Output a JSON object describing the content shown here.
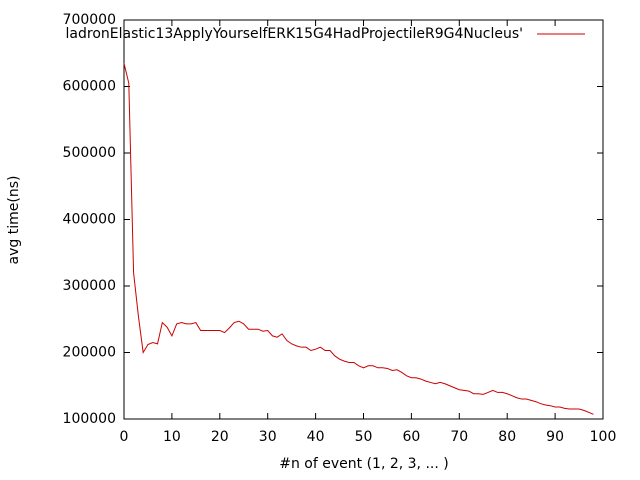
{
  "chart_data": {
    "type": "line",
    "xlabel": "#n of event (1, 2, 3, ... )",
    "ylabel": "avg time(ns)",
    "x": [
      0,
      1,
      2,
      3,
      4,
      5,
      6,
      7,
      8,
      9,
      10,
      11,
      12,
      13,
      14,
      15,
      16,
      17,
      18,
      19,
      20,
      21,
      22,
      23,
      24,
      25,
      26,
      27,
      28,
      29,
      30,
      31,
      32,
      33,
      34,
      35,
      36,
      37,
      38,
      39,
      40,
      41,
      42,
      43,
      44,
      45,
      46,
      47,
      48,
      49,
      50,
      51,
      52,
      53,
      54,
      55,
      56,
      57,
      58,
      59,
      60,
      61,
      62,
      63,
      64,
      65,
      66,
      67,
      68,
      69,
      70,
      71,
      72,
      73,
      74,
      75,
      76,
      77,
      78,
      79,
      80,
      81,
      82,
      83,
      84,
      85,
      86,
      87,
      88,
      89,
      90,
      91,
      92,
      93,
      94,
      95,
      96,
      97,
      98
    ],
    "series": [
      {
        "name": "ladronElastic13ApplyYourselfERK15G4HadProjectileR9G4Nucleus'",
        "color": "#cc0000",
        "values": [
          635000,
          605000,
          320000,
          255000,
          200000,
          212000,
          215000,
          213000,
          245000,
          238000,
          225000,
          243000,
          245000,
          243000,
          243000,
          245000,
          233000,
          233000,
          233000,
          233000,
          233000,
          230000,
          237000,
          245000,
          247000,
          243000,
          235000,
          235000,
          235000,
          232000,
          233000,
          225000,
          223000,
          228000,
          218000,
          213000,
          210000,
          208000,
          208000,
          203000,
          205000,
          208000,
          203000,
          203000,
          195000,
          190000,
          187000,
          185000,
          185000,
          180000,
          177000,
          180000,
          180000,
          177000,
          177000,
          176000,
          173000,
          174000,
          170000,
          165000,
          162000,
          162000,
          160000,
          157000,
          155000,
          153000,
          155000,
          153000,
          150000,
          147000,
          144000,
          143000,
          142000,
          138000,
          138000,
          137000,
          140000,
          143000,
          140000,
          140000,
          138000,
          135000,
          132000,
          130000,
          130000,
          128000,
          126000,
          123000,
          121000,
          120000,
          118000,
          118000,
          116000,
          115000,
          115000,
          115000,
          113000,
          110000,
          107000
        ]
      }
    ],
    "xlim": [
      0,
      100
    ],
    "xticks": [
      0,
      10,
      20,
      30,
      40,
      50,
      60,
      70,
      80,
      90,
      100
    ],
    "ylim": [
      100000,
      700000
    ],
    "yticks": [
      100000,
      200000,
      300000,
      400000,
      500000,
      600000,
      700000
    ],
    "legend": "top-right"
  }
}
